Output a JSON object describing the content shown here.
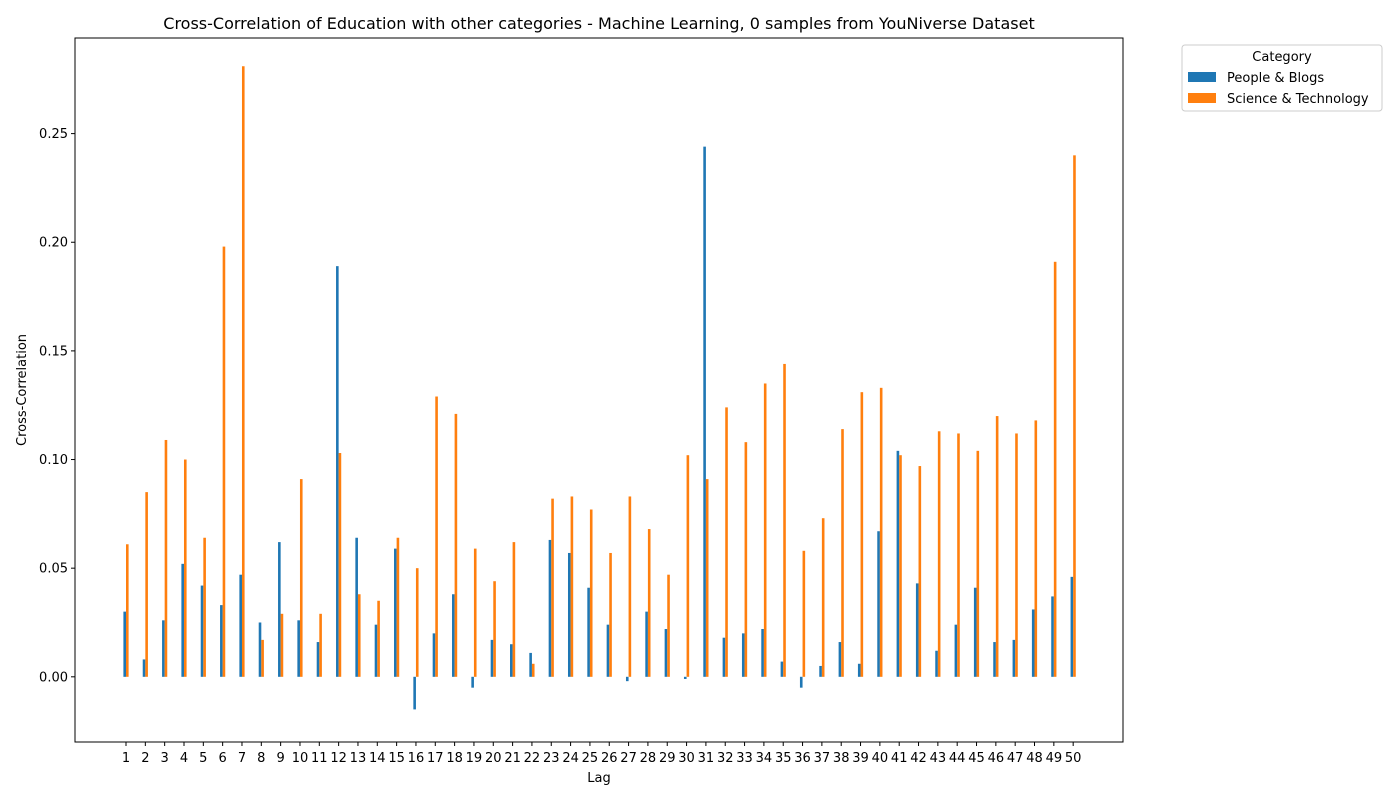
{
  "chart_data": {
    "type": "bar",
    "title": "Cross-Correlation of Education with other categories - Machine Learning, 0 samples from YouNiverse Dataset",
    "xlabel": "Lag",
    "ylabel": "Cross-Correlation",
    "ylim": [
      -0.03,
      0.294
    ],
    "yticks": [
      "0.00",
      "0.05",
      "0.10",
      "0.15",
      "0.20",
      "0.25"
    ],
    "grid": false,
    "legend": {
      "title": "Category",
      "placement": "outside-top-right"
    },
    "categories": [
      "1",
      "2",
      "3",
      "4",
      "5",
      "6",
      "7",
      "8",
      "9",
      "10",
      "11",
      "12",
      "13",
      "14",
      "15",
      "16",
      "17",
      "18",
      "19",
      "20",
      "21",
      "22",
      "23",
      "24",
      "25",
      "26",
      "27",
      "28",
      "29",
      "30",
      "31",
      "32",
      "33",
      "34",
      "35",
      "36",
      "37",
      "38",
      "39",
      "40",
      "41",
      "42",
      "43",
      "44",
      "45",
      "46",
      "47",
      "48",
      "49",
      "50"
    ],
    "series": [
      {
        "name": "People & Blogs",
        "color": "#1f77b4",
        "values": [
          0.03,
          0.008,
          0.026,
          0.052,
          0.042,
          0.033,
          0.047,
          0.025,
          0.062,
          0.026,
          0.016,
          0.189,
          0.064,
          0.024,
          0.059,
          -0.015,
          0.02,
          0.038,
          -0.005,
          0.017,
          0.015,
          0.011,
          0.063,
          0.057,
          0.041,
          0.024,
          -0.002,
          0.03,
          0.022,
          -0.001,
          0.244,
          0.018,
          0.02,
          0.022,
          0.007,
          -0.005,
          0.005,
          0.016,
          0.006,
          0.067,
          0.104,
          0.043,
          0.012,
          0.024,
          0.041,
          0.016,
          0.017,
          0.031,
          0.037,
          0.046
        ]
      },
      {
        "name": "Science & Technology",
        "color": "#ff7f0e",
        "values": [
          0.061,
          0.085,
          0.109,
          0.1,
          0.064,
          0.198,
          0.281,
          0.017,
          0.029,
          0.091,
          0.029,
          0.103,
          0.038,
          0.035,
          0.064,
          0.05,
          0.129,
          0.121,
          0.059,
          0.044,
          0.062,
          0.006,
          0.082,
          0.083,
          0.077,
          0.057,
          0.083,
          0.068,
          0.047,
          0.102,
          0.091,
          0.124,
          0.108,
          0.135,
          0.144,
          0.058,
          0.073,
          0.114,
          0.131,
          0.133,
          0.102,
          0.097,
          0.113,
          0.112,
          0.104,
          0.12,
          0.112,
          0.118,
          0.191,
          0.24
        ]
      }
    ]
  }
}
